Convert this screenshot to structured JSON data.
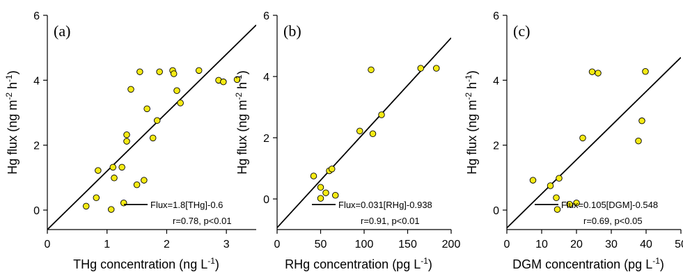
{
  "chart_data": [
    {
      "type": "scatter",
      "panel_label": "(a)",
      "xlabel": "THg concentration (ng L",
      "xlabel_sup": "-1",
      "xlabel_end": ")",
      "ylabel": "Hg flux (ng m",
      "ylabel_sup1": "-2",
      "ylabel_mid": " h",
      "ylabel_sup2": "-1",
      "ylabel_end": ")",
      "xlim": [
        0,
        3.5
      ],
      "ylim": [
        -0.6,
        6
      ],
      "xticks": [
        0,
        1,
        2,
        3
      ],
      "yticks": [
        0,
        2,
        4,
        6
      ],
      "fit": {
        "slope": 1.8,
        "intercept": -0.6
      },
      "legend_text": "Flux=1.8[THg]-0.6",
      "stats_text": "r=0.78, p<0.01",
      "points": [
        {
          "x": 0.65,
          "y": 0.12
        },
        {
          "x": 0.82,
          "y": 0.38
        },
        {
          "x": 0.85,
          "y": 1.22
        },
        {
          "x": 1.07,
          "y": 0.02
        },
        {
          "x": 1.1,
          "y": 1.32
        },
        {
          "x": 1.12,
          "y": 0.99
        },
        {
          "x": 1.25,
          "y": 1.32
        },
        {
          "x": 1.28,
          "y": 0.22
        },
        {
          "x": 1.33,
          "y": 2.12
        },
        {
          "x": 1.33,
          "y": 2.32
        },
        {
          "x": 1.4,
          "y": 3.72
        },
        {
          "x": 1.5,
          "y": 0.78
        },
        {
          "x": 1.55,
          "y": 4.26
        },
        {
          "x": 1.62,
          "y": 0.92
        },
        {
          "x": 1.67,
          "y": 3.12
        },
        {
          "x": 1.77,
          "y": 2.22
        },
        {
          "x": 1.84,
          "y": 2.76
        },
        {
          "x": 1.88,
          "y": 4.26
        },
        {
          "x": 2.1,
          "y": 4.3
        },
        {
          "x": 2.12,
          "y": 4.2
        },
        {
          "x": 2.17,
          "y": 3.68
        },
        {
          "x": 2.23,
          "y": 3.3
        },
        {
          "x": 2.54,
          "y": 4.3
        },
        {
          "x": 2.87,
          "y": 4.0
        },
        {
          "x": 2.95,
          "y": 3.95
        },
        {
          "x": 3.18,
          "y": 4.02
        }
      ]
    },
    {
      "type": "scatter",
      "panel_label": "(b)",
      "xlabel": "RHg concentration (pg L",
      "xlabel_sup": "-1",
      "xlabel_end": ")",
      "ylabel": "Hg flux (ng m",
      "ylabel_sup1": "-2",
      "ylabel_mid": " h",
      "ylabel_sup2": "-1",
      "ylabel_end": ")",
      "xlim": [
        0,
        200
      ],
      "ylim": [
        -1,
        6
      ],
      "xticks": [
        0,
        50,
        100,
        150,
        200
      ],
      "yticks": [
        0,
        2,
        4,
        6
      ],
      "fit": {
        "slope": 0.031,
        "intercept": -0.938
      },
      "legend_text": "Flux=0.031[RHg]-0.938",
      "stats_text": "r=0.91, p<0.01",
      "points": [
        {
          "x": 42,
          "y": 0.75
        },
        {
          "x": 50,
          "y": 0.38
        },
        {
          "x": 50,
          "y": 0.02
        },
        {
          "x": 56,
          "y": 0.2
        },
        {
          "x": 60,
          "y": 0.92
        },
        {
          "x": 63,
          "y": 0.98
        },
        {
          "x": 67,
          "y": 0.12
        },
        {
          "x": 95,
          "y": 2.22
        },
        {
          "x": 108,
          "y": 4.22
        },
        {
          "x": 110,
          "y": 2.13
        },
        {
          "x": 120,
          "y": 2.75
        },
        {
          "x": 165,
          "y": 4.27
        },
        {
          "x": 183,
          "y": 4.27
        }
      ]
    },
    {
      "type": "scatter",
      "panel_label": "(c)",
      "xlabel": "DGM concentration (pg L",
      "xlabel_sup": "-1",
      "xlabel_end": ")",
      "ylabel": "Hg flux (ng m",
      "ylabel_sup1": "-2",
      "ylabel_mid": " h",
      "ylabel_sup2": "-1",
      "ylabel_end": ")",
      "xlim": [
        0,
        50
      ],
      "ylim": [
        -0.6,
        6
      ],
      "xticks": [
        0,
        10,
        20,
        30,
        40,
        50
      ],
      "yticks": [
        0,
        2,
        4,
        6
      ],
      "fit": {
        "slope": 0.105,
        "intercept": -0.548
      },
      "legend_text": "Flux=0.105[DGM]-0.548",
      "stats_text": "r=0.69, p<0.05",
      "points": [
        {
          "x": 7.5,
          "y": 0.92
        },
        {
          "x": 12.5,
          "y": 0.75
        },
        {
          "x": 14.2,
          "y": 0.38
        },
        {
          "x": 14.5,
          "y": 0.02
        },
        {
          "x": 15,
          "y": 0.98
        },
        {
          "x": 18,
          "y": 0.18
        },
        {
          "x": 20,
          "y": 0.22
        },
        {
          "x": 21.8,
          "y": 2.22
        },
        {
          "x": 24.5,
          "y": 4.26
        },
        {
          "x": 26.2,
          "y": 4.22
        },
        {
          "x": 37.8,
          "y": 2.13
        },
        {
          "x": 38.8,
          "y": 2.75
        },
        {
          "x": 39.8,
          "y": 4.27
        }
      ]
    }
  ]
}
